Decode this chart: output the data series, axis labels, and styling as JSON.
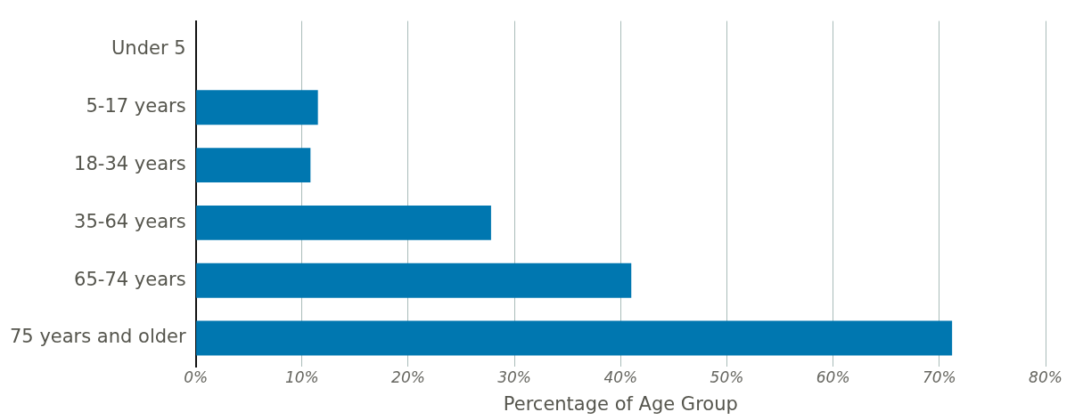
{
  "chart_data": {
    "type": "bar",
    "orientation": "horizontal",
    "xlabel": "Percentage of Age Group",
    "categories": [
      "Under 5",
      "5-17 years",
      "18-34 years",
      "35-64 years",
      "65-74 years",
      "75 years and older"
    ],
    "values": [
      0,
      11.5,
      10.8,
      27.8,
      41,
      71.2
    ],
    "color": "#0077b0",
    "xlim": [
      0,
      80
    ],
    "xticks": [
      {
        "value": 0,
        "label": "0%"
      },
      {
        "value": 10,
        "label": "10%"
      },
      {
        "value": 20,
        "label": "20%"
      },
      {
        "value": 30,
        "label": "30%"
      },
      {
        "value": 40,
        "label": "40%"
      },
      {
        "value": 50,
        "label": "50%"
      },
      {
        "value": 60,
        "label": "60%"
      },
      {
        "value": 70,
        "label": "70%"
      },
      {
        "value": 80,
        "label": "80%"
      }
    ],
    "grid": "x",
    "legend": false
  }
}
